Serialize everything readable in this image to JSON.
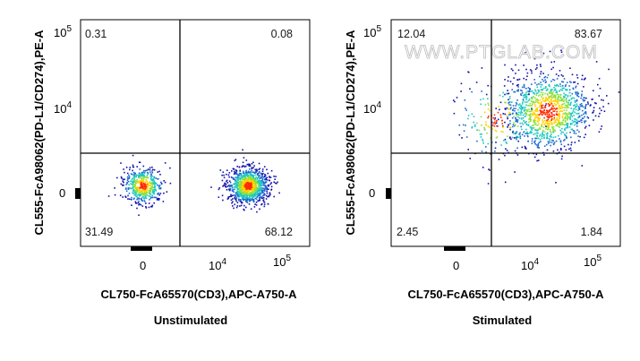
{
  "chart_data": [
    {
      "type": "scatter",
      "title": "Unstimulated",
      "xlabel": "CL750-FcA65570(CD3),APC-A750-A",
      "ylabel": "CL555-FcA98062(PD-L1/CD274),PE-A",
      "x_ticks": [
        {
          "value": 0,
          "base": "0",
          "exp": ""
        },
        {
          "value": 10000,
          "base": "10",
          "exp": "4"
        },
        {
          "value": 100000,
          "base": "10",
          "exp": "5"
        }
      ],
      "y_ticks": [
        {
          "value": 0,
          "base": "0",
          "exp": ""
        },
        {
          "value": 10000,
          "base": "10",
          "exp": "4"
        },
        {
          "value": 100000,
          "base": "10",
          "exp": "5"
        }
      ],
      "gate": {
        "x": 1200,
        "y": 1500
      },
      "quadrants": {
        "upper_left": "0.31",
        "upper_right": "0.08",
        "lower_left": "31.49",
        "lower_right": "68.12"
      },
      "populations": [
        {
          "x_center": 0,
          "y_center": 0,
          "spread": "compact",
          "share": 31.49
        },
        {
          "x_center": 30000,
          "y_center": 0,
          "spread": "compact",
          "share": 68.12
        }
      ]
    },
    {
      "type": "scatter",
      "title": "Stimulated",
      "xlabel": "CL750-FcA65570(CD3),APC-A750-A",
      "ylabel": "CL555-FcA98062(PD-L1/CD274),PE-A",
      "x_ticks": [
        {
          "value": 0,
          "base": "0",
          "exp": ""
        },
        {
          "value": 10000,
          "base": "10",
          "exp": "4"
        },
        {
          "value": 100000,
          "base": "10",
          "exp": "5"
        }
      ],
      "y_ticks": [
        {
          "value": 0,
          "base": "0",
          "exp": ""
        },
        {
          "value": 10000,
          "base": "10",
          "exp": "4"
        },
        {
          "value": 100000,
          "base": "10",
          "exp": "5"
        }
      ],
      "gate": {
        "x": 1200,
        "y": 1500
      },
      "quadrants": {
        "upper_left": "12.04",
        "upper_right": "83.67",
        "lower_left": "2.45",
        "lower_right": "1.84"
      },
      "populations": [
        {
          "x_center": 20000,
          "y_center": 9000,
          "spread": "diffuse",
          "share": 83.67
        },
        {
          "x_center": 200,
          "y_center": 4000,
          "spread": "diffuse",
          "share": 12.04
        }
      ]
    }
  ],
  "watermark": "WWW.PTGLAB.COM",
  "colors": {
    "density_low": "#1010b0",
    "density_mid": "#20c8a0",
    "density_high": "#ffee00",
    "density_peak": "#ff2000"
  }
}
